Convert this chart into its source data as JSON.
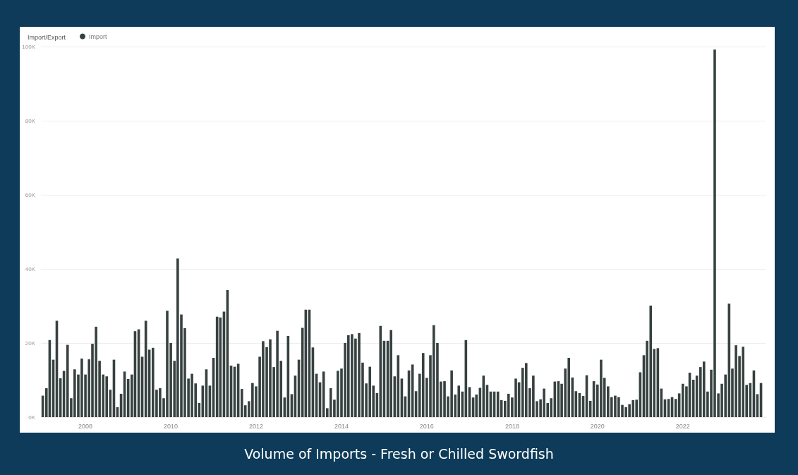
{
  "chart_data": {
    "type": "bar",
    "title": "Volume of Imports - Fresh or Chilled Swordfish",
    "legend_title": "Import/Export",
    "legend": "top left",
    "grid": "y",
    "x": [
      "2007-01",
      "2007-02",
      "2007-03",
      "2007-04",
      "2007-05",
      "2007-06",
      "2007-07",
      "2007-08",
      "2007-09",
      "2007-10",
      "2007-11",
      "2007-12",
      "2008-01",
      "2008-02",
      "2008-03",
      "2008-04",
      "2008-05",
      "2008-06",
      "2008-07",
      "2008-08",
      "2008-09",
      "2008-10",
      "2008-11",
      "2008-12",
      "2009-01",
      "2009-02",
      "2009-03",
      "2009-04",
      "2009-05",
      "2009-06",
      "2009-07",
      "2009-08",
      "2009-09",
      "2009-10",
      "2009-11",
      "2009-12",
      "2010-01",
      "2010-02",
      "2010-03",
      "2010-04",
      "2010-05",
      "2010-06",
      "2010-07",
      "2010-08",
      "2010-09",
      "2010-10",
      "2010-11",
      "2010-12",
      "2011-01",
      "2011-02",
      "2011-03",
      "2011-04",
      "2011-05",
      "2011-06",
      "2011-07",
      "2011-08",
      "2011-09",
      "2011-10",
      "2011-11",
      "2011-12",
      "2012-01",
      "2012-02",
      "2012-03",
      "2012-04",
      "2012-05",
      "2012-06",
      "2012-07",
      "2012-08",
      "2012-09",
      "2012-10",
      "2012-11",
      "2012-12",
      "2013-01",
      "2013-02",
      "2013-03",
      "2013-04",
      "2013-05",
      "2013-06",
      "2013-07",
      "2013-08",
      "2013-09",
      "2013-10",
      "2013-11",
      "2013-12",
      "2014-01",
      "2014-02",
      "2014-03",
      "2014-04",
      "2014-05",
      "2014-06",
      "2014-07",
      "2014-08",
      "2014-09",
      "2014-10",
      "2014-11",
      "2014-12",
      "2015-01",
      "2015-02",
      "2015-03",
      "2015-04",
      "2015-05",
      "2015-06",
      "2015-07",
      "2015-08",
      "2015-09",
      "2015-10",
      "2015-11",
      "2015-12",
      "2016-01",
      "2016-02",
      "2016-03",
      "2016-04",
      "2016-05",
      "2016-06",
      "2016-07",
      "2016-08",
      "2016-09",
      "2016-10",
      "2016-11",
      "2016-12",
      "2017-01",
      "2017-02",
      "2017-03",
      "2017-04",
      "2017-05",
      "2017-06",
      "2017-07",
      "2017-08",
      "2017-09",
      "2017-10",
      "2017-11",
      "2017-12",
      "2018-01",
      "2018-02",
      "2018-03",
      "2018-04",
      "2018-05",
      "2018-06",
      "2018-07",
      "2018-08",
      "2018-09",
      "2018-10",
      "2018-11",
      "2018-12",
      "2019-01",
      "2019-02",
      "2019-03",
      "2019-04",
      "2019-05",
      "2019-06",
      "2019-07",
      "2019-08",
      "2019-09",
      "2019-10",
      "2019-11",
      "2019-12",
      "2020-01",
      "2020-02",
      "2020-03",
      "2020-04",
      "2020-05",
      "2020-06",
      "2020-07",
      "2020-08",
      "2020-09",
      "2020-10",
      "2020-11",
      "2020-12",
      "2021-01",
      "2021-02",
      "2021-03",
      "2021-04",
      "2021-05",
      "2021-06",
      "2021-07",
      "2021-08",
      "2021-09",
      "2021-10",
      "2021-11",
      "2021-12",
      "2022-01",
      "2022-02",
      "2022-03",
      "2022-04",
      "2022-05",
      "2022-06",
      "2022-07",
      "2022-08",
      "2022-09",
      "2022-10",
      "2022-11",
      "2022-12",
      "2023-01",
      "2023-02",
      "2023-03",
      "2023-04",
      "2023-05",
      "2023-06",
      "2023-07",
      "2023-08",
      "2023-09",
      "2023-10",
      "2023-11"
    ],
    "xlim": [
      "2006-12-16",
      "2023-12-16"
    ],
    "xticks": [
      "2008",
      "2010",
      "2012",
      "2014",
      "2016",
      "2018",
      "2020",
      "2022"
    ],
    "ylim": [
      0,
      100000
    ],
    "yticks": [
      {
        "value": 0,
        "label": "0K"
      },
      {
        "value": 20000,
        "label": "20K"
      },
      {
        "value": 40000,
        "label": "40K"
      },
      {
        "value": 60000,
        "label": "60K"
      },
      {
        "value": 80000,
        "label": "80K"
      },
      {
        "value": 100000,
        "label": "100K"
      }
    ],
    "series": [
      {
        "name": "Import",
        "color": "#374140",
        "values": [
          5800,
          7800,
          20800,
          15500,
          26000,
          10500,
          12500,
          19500,
          5100,
          12900,
          11500,
          15800,
          11500,
          15600,
          19800,
          24400,
          15200,
          11500,
          11000,
          7400,
          15500,
          2700,
          6300,
          12300,
          10300,
          11500,
          23200,
          23700,
          16300,
          26000,
          18200,
          18700,
          7400,
          7800,
          5100,
          28700,
          20000,
          15200,
          42800,
          27700,
          24000,
          10400,
          11700,
          9100,
          3800,
          8500,
          12900,
          8500,
          16000,
          27100,
          26900,
          28500,
          34300,
          13900,
          13600,
          14400,
          7600,
          3200,
          4300,
          9200,
          8300,
          16300,
          20500,
          18900,
          21000,
          13500,
          23300,
          15200,
          5300,
          21900,
          6200,
          11200,
          15500,
          24100,
          29000,
          29000,
          18800,
          11700,
          9400,
          12300,
          2400,
          7800,
          4700,
          12500,
          13100,
          20000,
          22100,
          22400,
          21200,
          22700,
          14700,
          9100,
          13600,
          8500,
          6500,
          24600,
          20600,
          20600,
          23500,
          11000,
          16700,
          10400,
          5600,
          12600,
          14200,
          7000,
          11700,
          17300,
          10600,
          16700,
          24800,
          20000,
          9600,
          9700,
          5600,
          12600,
          6100,
          8500,
          6900,
          20800,
          8100,
          5300,
          6100,
          7900,
          11200,
          8700,
          6900,
          6900,
          6900,
          4600,
          4400,
          6300,
          5300,
          10400,
          9400,
          13300,
          14600,
          7800,
          11200,
          4300,
          4800,
          7700,
          3800,
          5100,
          9600,
          9700,
          9000,
          13100,
          16000,
          10700,
          7000,
          6500,
          5700,
          11300,
          4400,
          9700,
          8800,
          15500,
          10600,
          8300,
          5400,
          5800,
          5400,
          3300,
          2700,
          3500,
          4600,
          4700,
          12100,
          16700,
          20600,
          30100,
          18400,
          18600,
          7700,
          4800,
          4900,
          5400,
          4900,
          6400,
          9000,
          8300,
          12000,
          10100,
          11200,
          13500,
          15000,
          6900,
          12800,
          99200,
          6400,
          9000,
          11500,
          30600,
          13100,
          19400,
          16500,
          19000,
          8700,
          9200,
          12600,
          6200,
          9200
        ]
      }
    ]
  }
}
